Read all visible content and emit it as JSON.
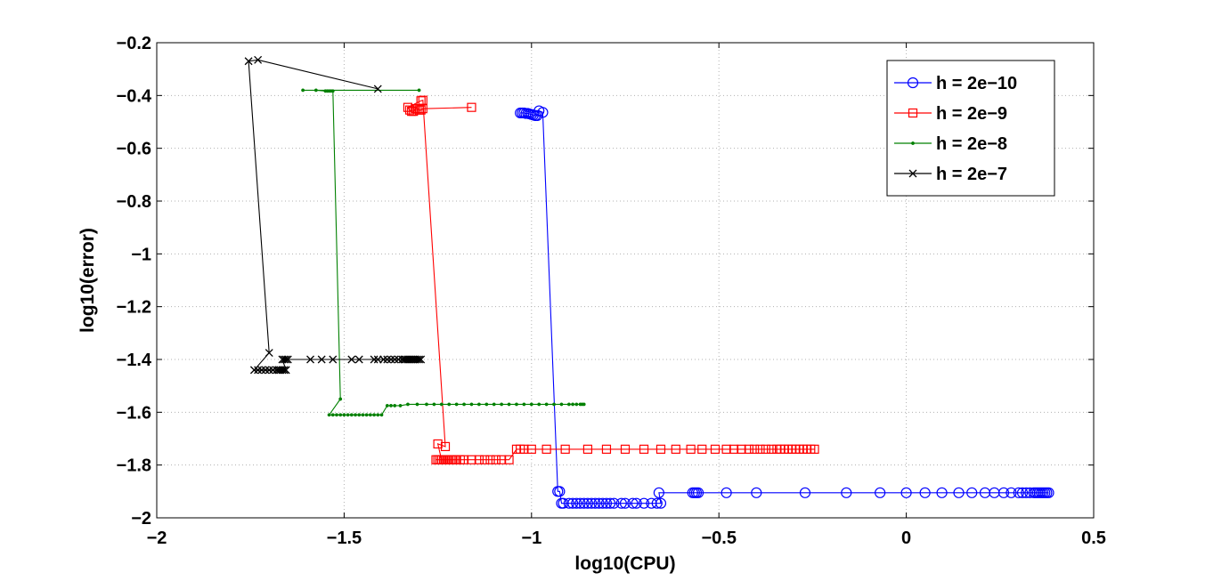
{
  "chart_data": {
    "type": "line",
    "title": "",
    "xlabel": "log10(CPU)",
    "ylabel": "log10(error)",
    "xlim": [
      -2,
      0.5
    ],
    "ylim": [
      -2,
      -0.2
    ],
    "xticks": [
      -2,
      -1.5,
      -1,
      -0.5,
      0,
      0.5
    ],
    "xtick_labels": [
      "−2",
      "−1.5",
      "−1",
      "−0.5",
      "0",
      "0.5"
    ],
    "yticks": [
      -2,
      -1.8,
      -1.6,
      -1.4,
      -1.2,
      -1,
      -0.8,
      -0.6,
      -0.4,
      -0.2
    ],
    "ytick_labels": [
      "−2",
      "−1.8",
      "−1.6",
      "−1.4",
      "−1.2",
      "−1",
      "−0.8",
      "−0.6",
      "−0.4",
      "−0.2"
    ],
    "grid": true,
    "legend_position": "top-right",
    "series": [
      {
        "name": "h = 2e−10",
        "color": "#0000ff",
        "marker": "circle",
        "x": [
          -1.03,
          -1.025,
          -1.02,
          -1.015,
          -1.01,
          -1.005,
          -1.0,
          -0.995,
          -0.99,
          -0.985,
          -0.98,
          -0.97,
          -0.93,
          -0.925,
          -0.92,
          -0.915,
          -0.9,
          -0.89,
          -0.88,
          -0.87,
          -0.86,
          -0.85,
          -0.84,
          -0.83,
          -0.82,
          -0.81,
          -0.8,
          -0.79,
          -0.78,
          -0.76,
          -0.75,
          -0.73,
          -0.72,
          -0.7,
          -0.68,
          -0.665,
          -0.655,
          -0.66,
          -0.57,
          -0.565,
          -0.56,
          -0.555,
          -0.48,
          -0.4,
          -0.27,
          -0.16,
          -0.07,
          0.0,
          0.05,
          0.095,
          0.14,
          0.175,
          0.21,
          0.235,
          0.26,
          0.28,
          0.3,
          0.31,
          0.32,
          0.33,
          0.34,
          0.345,
          0.35,
          0.355,
          0.36,
          0.365,
          0.37,
          0.375,
          0.38
        ],
        "y": [
          -0.466,
          -0.466,
          -0.466,
          -0.468,
          -0.468,
          -0.47,
          -0.472,
          -0.474,
          -0.476,
          -0.476,
          -0.458,
          -0.464,
          -1.9,
          -1.9,
          -1.945,
          -1.945,
          -1.945,
          -1.945,
          -1.945,
          -1.945,
          -1.945,
          -1.945,
          -1.945,
          -1.945,
          -1.945,
          -1.945,
          -1.945,
          -1.945,
          -1.945,
          -1.945,
          -1.945,
          -1.945,
          -1.945,
          -1.945,
          -1.945,
          -1.945,
          -1.945,
          -1.905,
          -1.905,
          -1.905,
          -1.905,
          -1.905,
          -1.905,
          -1.905,
          -1.905,
          -1.905,
          -1.905,
          -1.905,
          -1.905,
          -1.905,
          -1.905,
          -1.905,
          -1.905,
          -1.905,
          -1.905,
          -1.905,
          -1.905,
          -1.905,
          -1.905,
          -1.905,
          -1.905,
          -1.905,
          -1.905,
          -1.905,
          -1.905,
          -1.905,
          -1.905,
          -1.905,
          -1.905
        ]
      },
      {
        "name": "h = 2e−9",
        "color": "#ff0000",
        "marker": "square",
        "x": [
          -1.16,
          -1.29,
          -1.295,
          -1.3,
          -1.305,
          -1.31,
          -1.315,
          -1.32,
          -1.325,
          -1.33,
          -1.295,
          -1.29,
          -1.23,
          -1.25,
          -1.24,
          -1.255,
          -1.25,
          -1.245,
          -1.24,
          -1.235,
          -1.23,
          -1.225,
          -1.22,
          -1.215,
          -1.21,
          -1.205,
          -1.2,
          -1.19,
          -1.18,
          -1.16,
          -1.14,
          -1.125,
          -1.11,
          -1.095,
          -1.08,
          -1.06,
          -1.04,
          -1.03,
          -1.02,
          -1.0,
          -0.96,
          -0.91,
          -0.85,
          -0.8,
          -0.75,
          -0.7,
          -0.655,
          -0.615,
          -0.575,
          -0.545,
          -0.51,
          -0.48,
          -0.46,
          -0.44,
          -0.42,
          -0.405,
          -0.39,
          -0.375,
          -0.36,
          -0.345,
          -0.335,
          -0.325,
          -0.315,
          -0.305,
          -0.295,
          -0.285,
          -0.275,
          -0.265,
          -0.255,
          -0.245
        ],
        "y": [
          -0.445,
          -0.45,
          -0.455,
          -0.455,
          -0.45,
          -0.45,
          -0.46,
          -0.46,
          -0.455,
          -0.445,
          -0.42,
          -0.418,
          -1.73,
          -1.72,
          -1.78,
          -1.78,
          -1.78,
          -1.78,
          -1.78,
          -1.78,
          -1.78,
          -1.78,
          -1.78,
          -1.78,
          -1.78,
          -1.78,
          -1.78,
          -1.78,
          -1.78,
          -1.78,
          -1.78,
          -1.78,
          -1.78,
          -1.78,
          -1.78,
          -1.78,
          -1.74,
          -1.74,
          -1.74,
          -1.74,
          -1.74,
          -1.74,
          -1.74,
          -1.74,
          -1.74,
          -1.74,
          -1.74,
          -1.74,
          -1.74,
          -1.74,
          -1.74,
          -1.74,
          -1.74,
          -1.74,
          -1.74,
          -1.74,
          -1.74,
          -1.74,
          -1.74,
          -1.74,
          -1.74,
          -1.74,
          -1.74,
          -1.74,
          -1.74,
          -1.74,
          -1.74,
          -1.74,
          -1.74,
          -1.74
        ]
      },
      {
        "name": "h = 2e−8",
        "color": "#008000",
        "marker": "dot",
        "x": [
          -1.3,
          -1.61,
          -1.575,
          -1.55,
          -1.545,
          -1.54,
          -1.535,
          -1.53,
          -1.51,
          -1.54,
          -1.53,
          -1.52,
          -1.51,
          -1.5,
          -1.49,
          -1.48,
          -1.47,
          -1.46,
          -1.45,
          -1.44,
          -1.43,
          -1.42,
          -1.41,
          -1.4,
          -1.385,
          -1.375,
          -1.365,
          -1.35,
          -1.33,
          -1.305,
          -1.28,
          -1.26,
          -1.24,
          -1.22,
          -1.2,
          -1.18,
          -1.16,
          -1.14,
          -1.12,
          -1.1,
          -1.08,
          -1.06,
          -1.04,
          -1.02,
          -1.0,
          -0.98,
          -0.96,
          -0.94,
          -0.92,
          -0.9,
          -0.89,
          -0.88,
          -0.87,
          -0.865,
          -0.86
        ],
        "y": [
          -0.38,
          -0.38,
          -0.38,
          -0.383,
          -0.383,
          -0.383,
          -0.383,
          -0.383,
          -1.55,
          -1.61,
          -1.61,
          -1.61,
          -1.61,
          -1.61,
          -1.61,
          -1.61,
          -1.61,
          -1.61,
          -1.61,
          -1.61,
          -1.61,
          -1.61,
          -1.61,
          -1.61,
          -1.575,
          -1.575,
          -1.575,
          -1.575,
          -1.57,
          -1.57,
          -1.57,
          -1.57,
          -1.57,
          -1.57,
          -1.57,
          -1.57,
          -1.57,
          -1.57,
          -1.57,
          -1.57,
          -1.57,
          -1.57,
          -1.57,
          -1.57,
          -1.57,
          -1.57,
          -1.57,
          -1.57,
          -1.57,
          -1.57,
          -1.57,
          -1.57,
          -1.57,
          -1.57,
          -1.57
        ]
      },
      {
        "name": "h = 2e−7",
        "color": "#000000",
        "marker": "x",
        "x": [
          -1.41,
          -1.73,
          -1.755,
          -1.7,
          -1.74,
          -1.73,
          -1.72,
          -1.71,
          -1.7,
          -1.69,
          -1.68,
          -1.675,
          -1.67,
          -1.665,
          -1.66,
          -1.655,
          -1.665,
          -1.66,
          -1.655,
          -1.65,
          -1.59,
          -1.56,
          -1.53,
          -1.48,
          -1.46,
          -1.42,
          -1.41,
          -1.395,
          -1.385,
          -1.375,
          -1.365,
          -1.355,
          -1.345,
          -1.34,
          -1.335,
          -1.33,
          -1.325,
          -1.32,
          -1.315,
          -1.31,
          -1.305,
          -1.3,
          -1.295
        ],
        "y": [
          -0.375,
          -0.265,
          -0.27,
          -1.375,
          -1.44,
          -1.44,
          -1.44,
          -1.44,
          -1.44,
          -1.44,
          -1.44,
          -1.44,
          -1.44,
          -1.44,
          -1.44,
          -1.44,
          -1.4,
          -1.4,
          -1.4,
          -1.4,
          -1.4,
          -1.4,
          -1.4,
          -1.4,
          -1.4,
          -1.4,
          -1.4,
          -1.4,
          -1.4,
          -1.4,
          -1.4,
          -1.4,
          -1.4,
          -1.4,
          -1.4,
          -1.4,
          -1.4,
          -1.4,
          -1.4,
          -1.4,
          -1.4,
          -1.4,
          -1.4
        ]
      }
    ]
  }
}
